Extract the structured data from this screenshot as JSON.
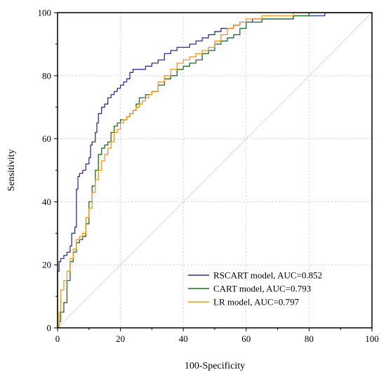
{
  "chart_data": {
    "type": "line",
    "title": "",
    "xlabel": "100-Specificity",
    "ylabel": "Sensitivity",
    "xlim": [
      0,
      100
    ],
    "ylim": [
      0,
      100
    ],
    "x_ticks": [
      "0",
      "20",
      "40",
      "60",
      "80",
      "100"
    ],
    "y_ticks": [
      "0",
      "20",
      "40",
      "60",
      "80",
      "100"
    ],
    "grid": true,
    "legend_position": "bottom-right",
    "reference_line": {
      "from": [
        0,
        0
      ],
      "to": [
        100,
        100
      ],
      "color": "#d9d9d9"
    },
    "series": [
      {
        "name": "RSCART model, AUC=0.852",
        "color": "#2e3192",
        "points": [
          [
            0,
            0
          ],
          [
            0,
            18
          ],
          [
            0.5,
            21
          ],
          [
            1,
            22
          ],
          [
            2,
            23
          ],
          [
            3,
            24
          ],
          [
            4,
            26
          ],
          [
            4.5,
            30
          ],
          [
            5.5,
            32
          ],
          [
            6,
            44
          ],
          [
            6.5,
            48
          ],
          [
            7,
            49
          ],
          [
            8,
            50
          ],
          [
            9,
            52
          ],
          [
            10,
            54
          ],
          [
            10.5,
            58
          ],
          [
            11,
            59
          ],
          [
            12,
            62
          ],
          [
            12.5,
            65
          ],
          [
            13,
            68
          ],
          [
            14,
            70
          ],
          [
            15,
            71
          ],
          [
            16,
            73
          ],
          [
            17,
            74
          ],
          [
            18,
            75
          ],
          [
            19,
            76
          ],
          [
            20,
            77
          ],
          [
            21,
            78
          ],
          [
            22,
            79
          ],
          [
            23,
            81
          ],
          [
            24,
            82
          ],
          [
            26,
            82
          ],
          [
            28,
            83
          ],
          [
            30,
            84
          ],
          [
            32,
            85
          ],
          [
            34,
            87
          ],
          [
            36,
            88
          ],
          [
            38,
            89
          ],
          [
            40,
            89
          ],
          [
            42,
            90
          ],
          [
            44,
            91
          ],
          [
            46,
            92
          ],
          [
            48,
            93
          ],
          [
            50,
            94
          ],
          [
            52,
            95
          ],
          [
            54,
            95
          ],
          [
            56,
            96
          ],
          [
            58,
            97
          ],
          [
            62,
            98
          ],
          [
            66,
            98
          ],
          [
            70,
            98
          ],
          [
            75,
            99
          ],
          [
            80,
            99
          ],
          [
            85,
            100
          ],
          [
            100,
            100
          ]
        ]
      },
      {
        "name": "CART model, AUC=0.793",
        "color": "#1e6b24",
        "points": [
          [
            0,
            0
          ],
          [
            0.5,
            2
          ],
          [
            1,
            5
          ],
          [
            2,
            8
          ],
          [
            3,
            15
          ],
          [
            4,
            21
          ],
          [
            5,
            24
          ],
          [
            6,
            27
          ],
          [
            7,
            28
          ],
          [
            8,
            29
          ],
          [
            9,
            33
          ],
          [
            10,
            40
          ],
          [
            11,
            45
          ],
          [
            12,
            50
          ],
          [
            13,
            55
          ],
          [
            14,
            57
          ],
          [
            15,
            58
          ],
          [
            16,
            59
          ],
          [
            17,
            62
          ],
          [
            18,
            64
          ],
          [
            19,
            65
          ],
          [
            20,
            66
          ],
          [
            21,
            66
          ],
          [
            22,
            67
          ],
          [
            23,
            68
          ],
          [
            24,
            69
          ],
          [
            25,
            71
          ],
          [
            26,
            73
          ],
          [
            27,
            73
          ],
          [
            28,
            74
          ],
          [
            30,
            75
          ],
          [
            32,
            77
          ],
          [
            34,
            79
          ],
          [
            36,
            80
          ],
          [
            38,
            82
          ],
          [
            40,
            83
          ],
          [
            42,
            84
          ],
          [
            44,
            85
          ],
          [
            46,
            87
          ],
          [
            48,
            88
          ],
          [
            50,
            90
          ],
          [
            52,
            91
          ],
          [
            54,
            92
          ],
          [
            56,
            93
          ],
          [
            58,
            95
          ],
          [
            60,
            97
          ],
          [
            65,
            98
          ],
          [
            70,
            98
          ],
          [
            75,
            99
          ],
          [
            80,
            100
          ],
          [
            100,
            100
          ]
        ]
      },
      {
        "name": "LR model, AUC=0.797",
        "color": "#f7941d",
        "points": [
          [
            0,
            0
          ],
          [
            0.5,
            5
          ],
          [
            1,
            12
          ],
          [
            2,
            15
          ],
          [
            3,
            18
          ],
          [
            4,
            22
          ],
          [
            5,
            25
          ],
          [
            6,
            28
          ],
          [
            7,
            29
          ],
          [
            8,
            30
          ],
          [
            9,
            35
          ],
          [
            10,
            38
          ],
          [
            11,
            43
          ],
          [
            12,
            47
          ],
          [
            13,
            50
          ],
          [
            14,
            53
          ],
          [
            15,
            55
          ],
          [
            16,
            57
          ],
          [
            17,
            59
          ],
          [
            18,
            62
          ],
          [
            19,
            63
          ],
          [
            20,
            65
          ],
          [
            21,
            66
          ],
          [
            22,
            67
          ],
          [
            23,
            68
          ],
          [
            24,
            69
          ],
          [
            25,
            70
          ],
          [
            26,
            71
          ],
          [
            27,
            72
          ],
          [
            28,
            73
          ],
          [
            29,
            74
          ],
          [
            30,
            75
          ],
          [
            32,
            78
          ],
          [
            34,
            80
          ],
          [
            36,
            82
          ],
          [
            38,
            84
          ],
          [
            40,
            85
          ],
          [
            42,
            86
          ],
          [
            44,
            87
          ],
          [
            46,
            88
          ],
          [
            48,
            89
          ],
          [
            50,
            91
          ],
          [
            52,
            93
          ],
          [
            54,
            95
          ],
          [
            56,
            96
          ],
          [
            58,
            97
          ],
          [
            60,
            98
          ],
          [
            65,
            99
          ],
          [
            70,
            99
          ],
          [
            75,
            100
          ],
          [
            100,
            100
          ]
        ]
      }
    ]
  }
}
